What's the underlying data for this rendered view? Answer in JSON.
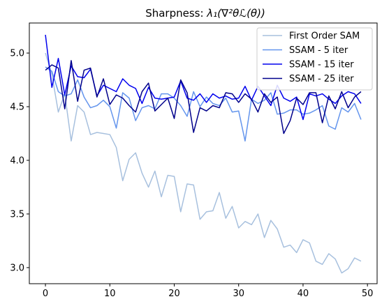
{
  "chart_data": {
    "type": "line",
    "title_prefix": "Sharpness: ",
    "title_math": "λ₁(∇²θℒ(θ))",
    "xlabel": "",
    "ylabel": "",
    "xlim": [
      -2.5,
      51.5
    ],
    "ylim": [
      2.85,
      5.28
    ],
    "xticks": [
      0,
      10,
      20,
      30,
      40,
      50
    ],
    "yticks": [
      3.0,
      3.5,
      4.0,
      4.5,
      5.0
    ],
    "grid": false,
    "legend_position": "top-right",
    "x": [
      0,
      1,
      2,
      3,
      4,
      5,
      6,
      7,
      8,
      9,
      10,
      11,
      12,
      13,
      14,
      15,
      16,
      17,
      18,
      19,
      20,
      21,
      22,
      23,
      24,
      25,
      26,
      27,
      28,
      29,
      30,
      31,
      32,
      33,
      34,
      35,
      36,
      37,
      38,
      39,
      40,
      41,
      42,
      43,
      44,
      45,
      46,
      47,
      48,
      49
    ],
    "series": [
      {
        "name": "First Order SAM",
        "color": "#a7c0de",
        "values": [
          5.0,
          4.8,
          4.45,
          4.62,
          4.18,
          4.51,
          4.45,
          4.24,
          4.26,
          4.25,
          4.24,
          4.12,
          3.81,
          4.01,
          4.07,
          3.88,
          3.75,
          3.9,
          3.66,
          3.86,
          3.85,
          3.52,
          3.78,
          3.77,
          3.45,
          3.52,
          3.53,
          3.7,
          3.46,
          3.57,
          3.37,
          3.43,
          3.4,
          3.5,
          3.28,
          3.44,
          3.36,
          3.19,
          3.21,
          3.14,
          3.26,
          3.23,
          3.06,
          3.03,
          3.13,
          3.08,
          2.95,
          2.99,
          3.09,
          3.06
        ]
      },
      {
        "name": "SSAM - 5 iter",
        "color": "#6495ed",
        "values": [
          4.87,
          4.83,
          4.64,
          4.6,
          4.62,
          4.75,
          4.59,
          4.49,
          4.51,
          4.56,
          4.5,
          4.3,
          4.63,
          4.58,
          4.37,
          4.49,
          4.51,
          4.48,
          4.62,
          4.62,
          4.58,
          4.51,
          4.41,
          4.64,
          4.5,
          4.59,
          4.53,
          4.51,
          4.58,
          4.45,
          4.46,
          4.18,
          4.57,
          4.53,
          4.56,
          4.63,
          4.43,
          4.44,
          4.47,
          4.47,
          4.43,
          4.44,
          4.47,
          4.51,
          4.32,
          4.29,
          4.49,
          4.45,
          4.53,
          4.38
        ]
      },
      {
        "name": "SSAM - 15 iter",
        "color": "#0000ee",
        "values": [
          5.17,
          4.68,
          4.95,
          4.61,
          4.88,
          4.78,
          4.77,
          4.85,
          4.6,
          4.7,
          4.67,
          4.64,
          4.76,
          4.7,
          4.67,
          4.53,
          4.68,
          4.58,
          4.57,
          4.58,
          4.59,
          4.74,
          4.58,
          4.56,
          4.62,
          4.54,
          4.62,
          4.58,
          4.6,
          4.57,
          4.58,
          4.69,
          4.56,
          4.69,
          4.6,
          4.51,
          4.7,
          4.58,
          4.55,
          4.59,
          4.38,
          4.62,
          4.6,
          4.62,
          4.57,
          4.53,
          4.6,
          4.64,
          4.62,
          4.53
        ]
      },
      {
        "name": "SSAM - 25 iter",
        "color": "#00008b",
        "values": [
          4.84,
          4.89,
          4.86,
          4.48,
          4.93,
          4.55,
          4.84,
          4.86,
          4.59,
          4.76,
          4.52,
          4.61,
          4.58,
          4.51,
          4.45,
          4.64,
          4.72,
          4.46,
          4.52,
          4.58,
          4.39,
          4.75,
          4.63,
          4.26,
          4.49,
          4.46,
          4.51,
          4.49,
          4.63,
          4.62,
          4.54,
          4.62,
          4.57,
          4.45,
          4.62,
          4.54,
          4.59,
          4.25,
          4.37,
          4.58,
          4.52,
          4.63,
          4.63,
          4.35,
          4.6,
          4.48,
          4.64,
          4.49,
          4.59,
          4.64
        ]
      }
    ]
  }
}
